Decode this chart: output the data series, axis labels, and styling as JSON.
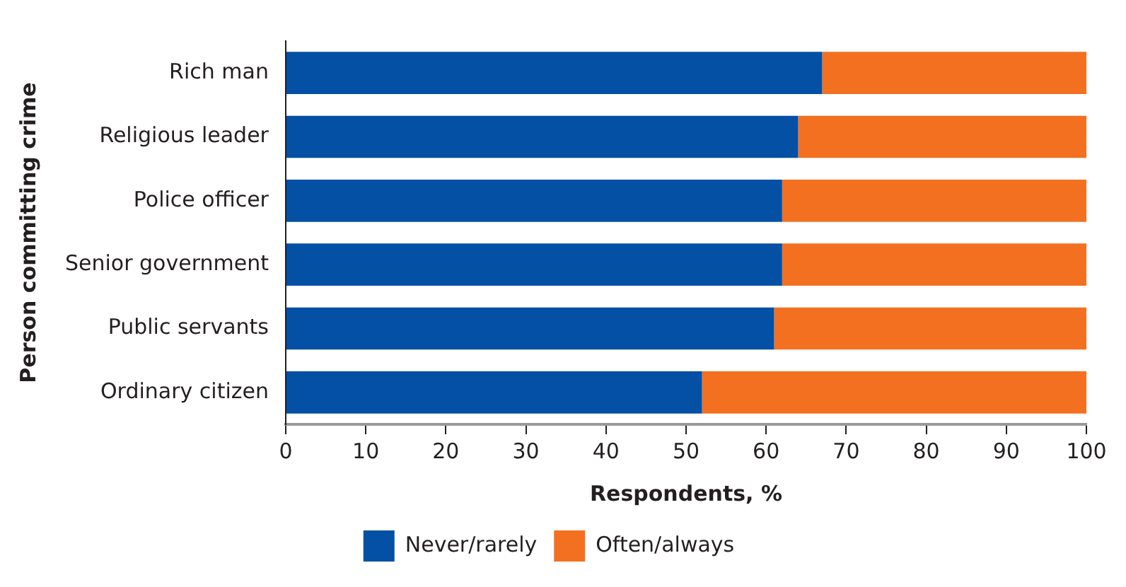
{
  "chart_data": {
    "type": "bar",
    "orientation": "horizontal",
    "stacked": true,
    "xlabel": "Respondents, %",
    "ylabel": "Person committing crime",
    "categories": [
      "Rich man",
      "Religious leader",
      "Police officer",
      "Senior government",
      "Public servants",
      "Ordinary citizen"
    ],
    "series": [
      {
        "name": "Never/rarely",
        "color": "#0450a4",
        "values": [
          67,
          64,
          62,
          62,
          61,
          52
        ]
      },
      {
        "name": "Often/always",
        "color": "#f37021",
        "values": [
          33,
          36,
          38,
          38,
          39,
          48
        ]
      }
    ],
    "xlim": [
      0,
      100
    ],
    "xticks": [
      0,
      10,
      20,
      30,
      40,
      50,
      60,
      70,
      80,
      90,
      100
    ],
    "grid": false,
    "legend": "bottom"
  }
}
